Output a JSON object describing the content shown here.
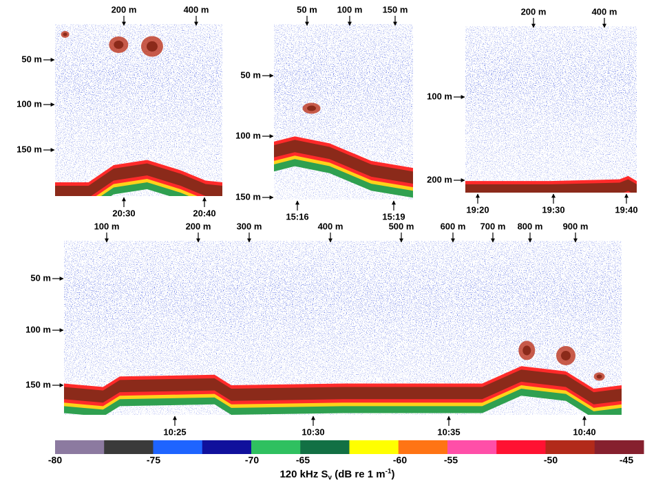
{
  "panels": [
    {
      "top_labels": [
        "200 m",
        "400 m"
      ],
      "left_labels": [
        "50 m",
        "100 m",
        "150 m"
      ],
      "bottom_labels": [
        "20:30",
        "20:40"
      ]
    },
    {
      "top_labels": [
        "50 m",
        "100 m",
        "150 m"
      ],
      "left_labels": [
        "50 m",
        "100 m",
        "150 m"
      ],
      "bottom_labels": [
        "15:16",
        "15:19"
      ]
    },
    {
      "top_labels": [
        "200 m",
        "400 m"
      ],
      "left_labels": [
        "100 m",
        "200 m"
      ],
      "bottom_labels": [
        "19:20",
        "19:30",
        "19:40"
      ]
    },
    {
      "top_labels": [
        "100 m",
        "200 m",
        "300 m",
        "400 m",
        "500 m",
        "600 m",
        "700 m",
        "800 m",
        "900 m"
      ],
      "left_labels": [
        "50 m",
        "100 m",
        "150 m"
      ],
      "bottom_labels": [
        "10:25",
        "10:30",
        "10:35",
        "10:40"
      ]
    }
  ],
  "colorbar": {
    "colors": [
      "#8c7aa0",
      "#3a3a3a",
      "#1e64ff",
      "#10109c",
      "#2fc060",
      "#127044",
      "#ffff00",
      "#ff7414",
      "#ff4fa8",
      "#ff1232",
      "#b22a1a",
      "#86202e"
    ],
    "ticks": [
      -80,
      -75,
      -70,
      -65,
      -60,
      -55,
      -50,
      -45
    ],
    "label": {
      "main": "120 kHz S",
      "sub": "v",
      "unit": " (dB re 1 m",
      "sup": "-1",
      "end": ")"
    }
  }
}
